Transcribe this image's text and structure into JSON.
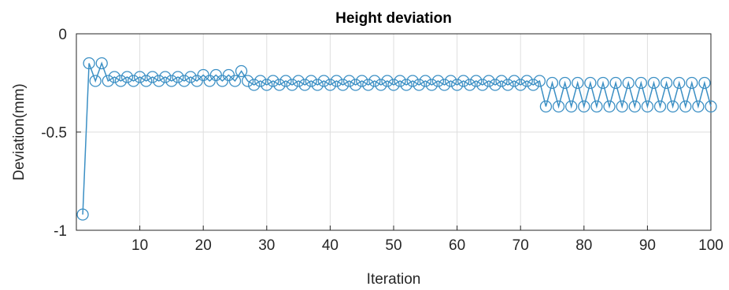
{
  "chart_data": {
    "type": "line",
    "title": "Height deviation",
    "xlabel": "Iteration",
    "ylabel": "Deviation(mm)",
    "xlim": [
      0,
      100
    ],
    "ylim": [
      -1,
      0
    ],
    "xticks": [
      10,
      20,
      30,
      40,
      50,
      60,
      70,
      80,
      90,
      100
    ],
    "yticks": [
      0,
      -0.5,
      -1
    ],
    "xtick_labels": [
      "10",
      "20",
      "30",
      "40",
      "50",
      "60",
      "70",
      "80",
      "90",
      "100"
    ],
    "ytick_labels": [
      "0",
      "-0.5",
      "-1"
    ],
    "grid": true,
    "marker": "circle",
    "colors": {
      "series": "#3b8fc4",
      "axis": "#262626",
      "grid": "#dedede"
    },
    "series": [
      {
        "x": [
          1,
          2,
          3,
          4,
          5,
          6,
          7,
          8,
          9,
          10,
          11,
          12,
          13,
          14,
          15,
          16,
          17,
          18,
          19,
          20,
          21,
          22,
          23,
          24,
          25,
          26,
          27,
          28,
          29,
          30,
          31,
          32,
          33,
          34,
          35,
          36,
          37,
          38,
          39,
          40,
          41,
          42,
          43,
          44,
          45,
          46,
          47,
          48,
          49,
          50,
          51,
          52,
          53,
          54,
          55,
          56,
          57,
          58,
          59,
          60,
          61,
          62,
          63,
          64,
          65,
          66,
          67,
          68,
          69,
          70,
          71,
          72,
          73,
          74,
          75,
          76,
          77,
          78,
          79,
          80,
          81,
          82,
          83,
          84,
          85,
          86,
          87,
          88,
          89,
          90,
          91,
          92,
          93,
          94,
          95,
          96,
          97,
          98,
          99,
          100
        ],
        "values": [
          -0.92,
          -0.15,
          -0.24,
          -0.15,
          -0.24,
          -0.22,
          -0.24,
          -0.22,
          -0.24,
          -0.22,
          -0.24,
          -0.22,
          -0.24,
          -0.22,
          -0.24,
          -0.22,
          -0.24,
          -0.22,
          -0.24,
          -0.21,
          -0.24,
          -0.21,
          -0.24,
          -0.21,
          -0.24,
          -0.19,
          -0.24,
          -0.26,
          -0.24,
          -0.26,
          -0.24,
          -0.26,
          -0.24,
          -0.26,
          -0.24,
          -0.26,
          -0.24,
          -0.26,
          -0.24,
          -0.26,
          -0.24,
          -0.26,
          -0.24,
          -0.26,
          -0.24,
          -0.26,
          -0.24,
          -0.26,
          -0.24,
          -0.26,
          -0.24,
          -0.26,
          -0.24,
          -0.26,
          -0.24,
          -0.26,
          -0.24,
          -0.26,
          -0.24,
          -0.26,
          -0.24,
          -0.26,
          -0.24,
          -0.26,
          -0.24,
          -0.26,
          -0.24,
          -0.26,
          -0.24,
          -0.26,
          -0.24,
          -0.26,
          -0.24,
          -0.37,
          -0.25,
          -0.37,
          -0.25,
          -0.37,
          -0.25,
          -0.37,
          -0.25,
          -0.37,
          -0.25,
          -0.37,
          -0.25,
          -0.37,
          -0.25,
          -0.37,
          -0.25,
          -0.37,
          -0.25,
          -0.37,
          -0.25,
          -0.37,
          -0.25,
          -0.37,
          -0.25,
          -0.37,
          -0.25,
          -0.37
        ]
      }
    ]
  }
}
